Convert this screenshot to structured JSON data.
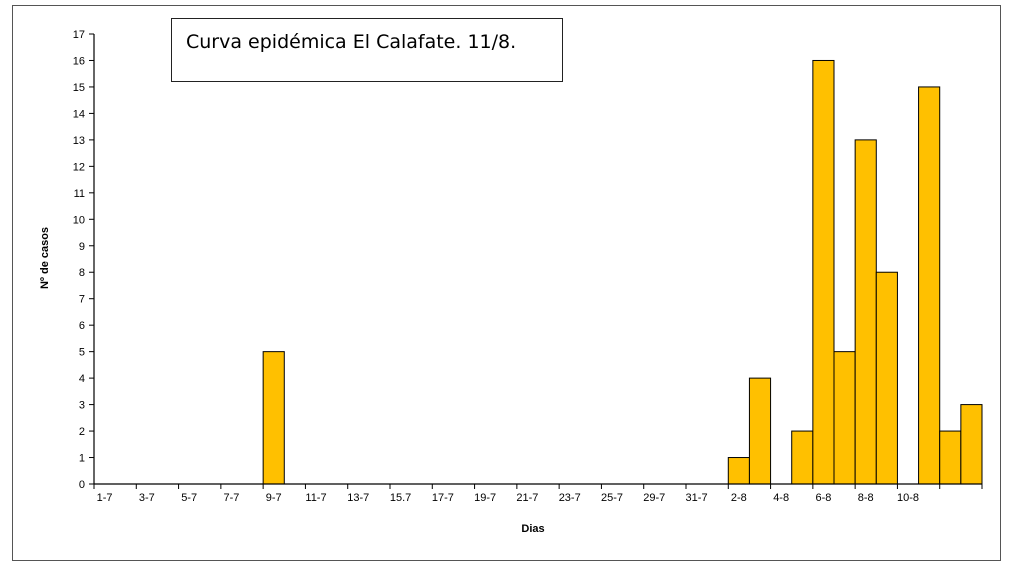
{
  "chart_data": {
    "type": "bar",
    "title": "Curva epidémica El Calafate. 11/8.",
    "xlabel": "Dias",
    "ylabel": "Nº de casos",
    "ylim": [
      0,
      17
    ],
    "yticks": [
      0,
      1,
      2,
      3,
      4,
      5,
      6,
      7,
      8,
      9,
      10,
      11,
      12,
      13,
      14,
      15,
      16,
      17
    ],
    "grid": false,
    "bar_color": "#FFC000",
    "tick_labels": [
      "1-7",
      "3-7",
      "5-7",
      "7-7",
      "9-7",
      "11-7",
      "13-7",
      "15.7",
      "17-7",
      "19-7",
      "21-7",
      "23-7",
      "25-7",
      "29-7",
      "31-7",
      "2-8",
      "4-8",
      "6-8",
      "8-8",
      "10-8"
    ],
    "categories": [
      "1-7",
      "2-7",
      "3-7",
      "4-7",
      "5-7",
      "6-7",
      "7-7",
      "8-7",
      "9-7",
      "10-7",
      "11-7",
      "12-7",
      "13-7",
      "14-7",
      "15-7",
      "16-7",
      "17-7",
      "18-7",
      "19-7",
      "20-7",
      "21-7",
      "22-7",
      "23-7",
      "24-7",
      "25-7",
      "26-7",
      "27-7",
      "28-7",
      "29-7",
      "30-7",
      "31-7",
      "1-8",
      "2-8",
      "3-8",
      "4-8",
      "5-8",
      "6-8",
      "7-8",
      "8-8",
      "9-8",
      "10-8",
      "11-8"
    ],
    "values": [
      0,
      0,
      0,
      0,
      0,
      0,
      0,
      0,
      5,
      0,
      0,
      0,
      0,
      0,
      0,
      0,
      0,
      0,
      0,
      0,
      0,
      0,
      0,
      0,
      0,
      0,
      0,
      0,
      0,
      0,
      1,
      4,
      0,
      2,
      16,
      5,
      13,
      8,
      0,
      15,
      2,
      3
    ]
  }
}
